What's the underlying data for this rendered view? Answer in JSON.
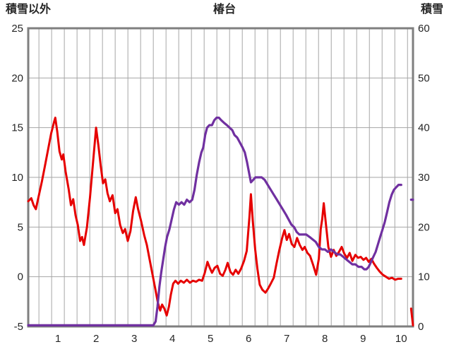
{
  "chart_data": {
    "type": "line",
    "title": "椿台",
    "legend": "none",
    "grid": "on",
    "colors": {
      "grid": "#a6a6a6",
      "border": "#7f7f7f",
      "text": "#262626",
      "background": "#ffffff"
    },
    "x_axis": {
      "min": 0.22,
      "max": 10.31,
      "tick_labels": [
        "1",
        "2",
        "3",
        "4",
        "5",
        "6",
        "7",
        "8",
        "9",
        "10"
      ],
      "tick_values": [
        1,
        2,
        3,
        4,
        5,
        6,
        7,
        8,
        9,
        10
      ],
      "grid_start": 0.5,
      "grid_step": 0.33333
    },
    "left_axis": {
      "label": "積雪以外",
      "min": -5,
      "max": 25,
      "ticks": [
        -5,
        0,
        5,
        10,
        15,
        20,
        25
      ]
    },
    "right_axis": {
      "label": "積雪",
      "min": 0,
      "max": 60,
      "ticks": [
        0,
        10,
        20,
        30,
        40,
        50,
        60
      ]
    },
    "series": [
      {
        "id": "non-snow-line",
        "name": "積雪以外",
        "axis": "left",
        "color": "#e60000",
        "width": 3,
        "segments": [
          [
            [
              0.22,
              7.6
            ],
            [
              0.3,
              7.9
            ],
            [
              0.36,
              7.2
            ],
            [
              0.42,
              6.8
            ],
            [
              0.5,
              8.2
            ],
            [
              0.58,
              9.6
            ],
            [
              0.66,
              11.2
            ],
            [
              0.74,
              12.8
            ],
            [
              0.82,
              14.4
            ],
            [
              0.9,
              15.6
            ],
            [
              0.93,
              16.0
            ],
            [
              0.98,
              14.6
            ],
            [
              1.04,
              12.6
            ],
            [
              1.1,
              11.8
            ],
            [
              1.14,
              12.3
            ],
            [
              1.2,
              10.6
            ],
            [
              1.28,
              8.8
            ],
            [
              1.34,
              7.2
            ],
            [
              1.4,
              7.8
            ],
            [
              1.46,
              6.2
            ],
            [
              1.52,
              5.2
            ],
            [
              1.58,
              3.6
            ],
            [
              1.63,
              4.0
            ],
            [
              1.68,
              3.2
            ],
            [
              1.76,
              5.0
            ],
            [
              1.84,
              8.0
            ],
            [
              1.92,
              11.5
            ],
            [
              2.0,
              15.0
            ],
            [
              2.06,
              13.2
            ],
            [
              2.12,
              11.2
            ],
            [
              2.18,
              9.4
            ],
            [
              2.24,
              9.8
            ],
            [
              2.3,
              8.4
            ],
            [
              2.36,
              7.6
            ],
            [
              2.43,
              8.2
            ],
            [
              2.5,
              6.4
            ],
            [
              2.56,
              6.8
            ],
            [
              2.63,
              5.2
            ],
            [
              2.7,
              4.4
            ],
            [
              2.76,
              4.8
            ],
            [
              2.83,
              3.6
            ],
            [
              2.9,
              4.6
            ],
            [
              2.97,
              6.6
            ],
            [
              3.04,
              8.0
            ],
            [
              3.1,
              6.8
            ],
            [
              3.18,
              5.6
            ],
            [
              3.26,
              4.2
            ],
            [
              3.33,
              3.2
            ],
            [
              3.41,
              1.6
            ],
            [
              3.48,
              0.2
            ],
            [
              3.55,
              -1.2
            ],
            [
              3.62,
              -2.6
            ],
            [
              3.68,
              -3.4
            ],
            [
              3.73,
              -2.8
            ],
            [
              3.79,
              -3.2
            ],
            [
              3.85,
              -3.9
            ],
            [
              3.91,
              -3.0
            ],
            [
              3.96,
              -1.8
            ],
            [
              4.02,
              -0.7
            ],
            [
              4.08,
              -0.4
            ],
            [
              4.15,
              -0.7
            ],
            [
              4.22,
              -0.4
            ],
            [
              4.3,
              -0.6
            ],
            [
              4.38,
              -0.3
            ],
            [
              4.46,
              -0.6
            ],
            [
              4.54,
              -0.4
            ],
            [
              4.62,
              -0.5
            ],
            [
              4.7,
              -0.3
            ],
            [
              4.78,
              -0.4
            ],
            [
              4.85,
              0.4
            ],
            [
              4.92,
              1.5
            ],
            [
              4.98,
              0.9
            ],
            [
              5.04,
              0.4
            ],
            [
              5.11,
              0.9
            ],
            [
              5.18,
              1.1
            ],
            [
              5.25,
              0.3
            ],
            [
              5.32,
              0.1
            ],
            [
              5.39,
              0.7
            ],
            [
              5.45,
              1.4
            ],
            [
              5.52,
              0.5
            ],
            [
              5.59,
              0.2
            ],
            [
              5.66,
              0.7
            ],
            [
              5.73,
              0.3
            ],
            [
              5.8,
              0.8
            ],
            [
              5.88,
              1.6
            ],
            [
              5.95,
              2.6
            ],
            [
              6.02,
              6.0
            ],
            [
              6.06,
              8.3
            ],
            [
              6.11,
              5.6
            ],
            [
              6.17,
              2.8
            ],
            [
              6.23,
              0.8
            ],
            [
              6.29,
              -0.8
            ],
            [
              6.36,
              -1.3
            ],
            [
              6.44,
              -1.6
            ],
            [
              6.51,
              -1.2
            ],
            [
              6.58,
              -0.7
            ],
            [
              6.66,
              -0.1
            ],
            [
              6.73,
              1.3
            ],
            [
              6.8,
              2.6
            ],
            [
              6.88,
              3.9
            ],
            [
              6.94,
              4.7
            ],
            [
              7.0,
              3.7
            ],
            [
              7.06,
              4.3
            ],
            [
              7.13,
              3.3
            ],
            [
              7.2,
              3.0
            ],
            [
              7.27,
              3.9
            ],
            [
              7.34,
              3.2
            ],
            [
              7.41,
              2.7
            ],
            [
              7.47,
              3.0
            ],
            [
              7.54,
              2.4
            ],
            [
              7.61,
              2.1
            ],
            [
              7.69,
              1.2
            ],
            [
              7.77,
              0.2
            ],
            [
              7.84,
              1.8
            ],
            [
              7.89,
              4.8
            ],
            [
              7.93,
              5.8
            ],
            [
              7.97,
              7.4
            ],
            [
              8.03,
              5.2
            ],
            [
              8.09,
              3.0
            ],
            [
              8.16,
              2.0
            ],
            [
              8.23,
              2.7
            ],
            [
              8.3,
              2.1
            ],
            [
              8.37,
              2.5
            ],
            [
              8.44,
              3.0
            ],
            [
              8.51,
              2.3
            ],
            [
              8.58,
              1.9
            ],
            [
              8.65,
              2.4
            ],
            [
              8.72,
              1.6
            ],
            [
              8.8,
              2.2
            ],
            [
              8.87,
              1.9
            ],
            [
              8.94,
              2.0
            ],
            [
              9.01,
              1.7
            ],
            [
              9.08,
              1.9
            ],
            [
              9.15,
              1.5
            ],
            [
              9.22,
              1.8
            ],
            [
              9.29,
              1.3
            ],
            [
              9.36,
              0.9
            ],
            [
              9.44,
              0.5
            ],
            [
              9.52,
              0.2
            ],
            [
              9.6,
              0.0
            ],
            [
              9.68,
              -0.2
            ],
            [
              9.76,
              -0.1
            ],
            [
              9.84,
              -0.3
            ],
            [
              9.92,
              -0.2
            ],
            [
              10.0,
              -0.2
            ]
          ],
          [
            [
              10.26,
              -3.2
            ],
            [
              10.31,
              -5.0
            ]
          ]
        ]
      },
      {
        "id": "snow-line",
        "name": "積雪",
        "axis": "right",
        "color": "#7030a0",
        "width": 3.2,
        "segments": [
          [
            [
              0.22,
              0
            ],
            [
              1.0,
              0
            ],
            [
              2.0,
              0
            ],
            [
              3.0,
              0
            ],
            [
              3.5,
              0
            ],
            [
              3.56,
              1
            ],
            [
              3.61,
              4
            ],
            [
              3.66,
              8
            ],
            [
              3.71,
              11
            ],
            [
              3.76,
              13.5
            ],
            [
              3.81,
              16
            ],
            [
              3.86,
              18
            ],
            [
              3.92,
              19.5
            ],
            [
              3.98,
              21.5
            ],
            [
              4.04,
              23.5
            ],
            [
              4.1,
              25
            ],
            [
              4.17,
              24.5
            ],
            [
              4.24,
              25
            ],
            [
              4.31,
              24.5
            ],
            [
              4.38,
              25.5
            ],
            [
              4.45,
              25
            ],
            [
              4.52,
              25.5
            ],
            [
              4.58,
              27.5
            ],
            [
              4.64,
              30.5
            ],
            [
              4.7,
              33
            ],
            [
              4.76,
              35
            ],
            [
              4.81,
              36
            ],
            [
              4.86,
              38.5
            ],
            [
              4.91,
              40
            ],
            [
              4.97,
              40.5
            ],
            [
              5.04,
              40.5
            ],
            [
              5.1,
              41.5
            ],
            [
              5.16,
              42
            ],
            [
              5.22,
              42
            ],
            [
              5.28,
              41.5
            ],
            [
              5.35,
              41
            ],
            [
              5.43,
              40.5
            ],
            [
              5.5,
              40
            ],
            [
              5.57,
              39.5
            ],
            [
              5.63,
              38.5
            ],
            [
              5.7,
              38
            ],
            [
              5.77,
              37
            ],
            [
              5.84,
              36
            ],
            [
              5.9,
              35
            ],
            [
              5.96,
              33
            ],
            [
              6.01,
              31
            ],
            [
              6.06,
              29
            ],
            [
              6.12,
              29.5
            ],
            [
              6.18,
              30
            ],
            [
              6.26,
              30
            ],
            [
              6.34,
              30
            ],
            [
              6.42,
              29.5
            ],
            [
              6.5,
              28.5
            ],
            [
              6.58,
              27.5
            ],
            [
              6.66,
              26.5
            ],
            [
              6.74,
              25.5
            ],
            [
              6.82,
              24.5
            ],
            [
              6.9,
              23.5
            ],
            [
              6.98,
              22.5
            ],
            [
              7.05,
              21.5
            ],
            [
              7.12,
              20.5
            ],
            [
              7.19,
              20
            ],
            [
              7.26,
              19
            ],
            [
              7.33,
              18.5
            ],
            [
              7.42,
              18.5
            ],
            [
              7.51,
              18.5
            ],
            [
              7.6,
              18
            ],
            [
              7.68,
              17.5
            ],
            [
              7.76,
              17
            ],
            [
              7.84,
              16
            ],
            [
              7.92,
              15.5
            ],
            [
              8.0,
              15.5
            ],
            [
              8.08,
              15
            ],
            [
              8.16,
              15.5
            ],
            [
              8.24,
              15
            ],
            [
              8.32,
              14.5
            ],
            [
              8.4,
              14.5
            ],
            [
              8.48,
              14
            ],
            [
              8.56,
              13.5
            ],
            [
              8.64,
              13
            ],
            [
              8.72,
              12.5
            ],
            [
              8.8,
              12.5
            ],
            [
              8.88,
              12
            ],
            [
              8.96,
              12
            ],
            [
              9.03,
              11.5
            ],
            [
              9.09,
              11.5
            ],
            [
              9.15,
              12
            ],
            [
              9.21,
              13
            ],
            [
              9.27,
              14
            ],
            [
              9.33,
              15
            ],
            [
              9.39,
              16.5
            ],
            [
              9.45,
              18
            ],
            [
              9.51,
              19.5
            ],
            [
              9.57,
              21
            ],
            [
              9.63,
              23
            ],
            [
              9.69,
              25
            ],
            [
              9.75,
              26.5
            ],
            [
              9.81,
              27.5
            ],
            [
              9.87,
              28
            ],
            [
              9.93,
              28.5
            ],
            [
              10.0,
              28.5
            ]
          ],
          [
            [
              10.26,
              25.5
            ],
            [
              10.31,
              25.5
            ]
          ]
        ]
      }
    ]
  }
}
